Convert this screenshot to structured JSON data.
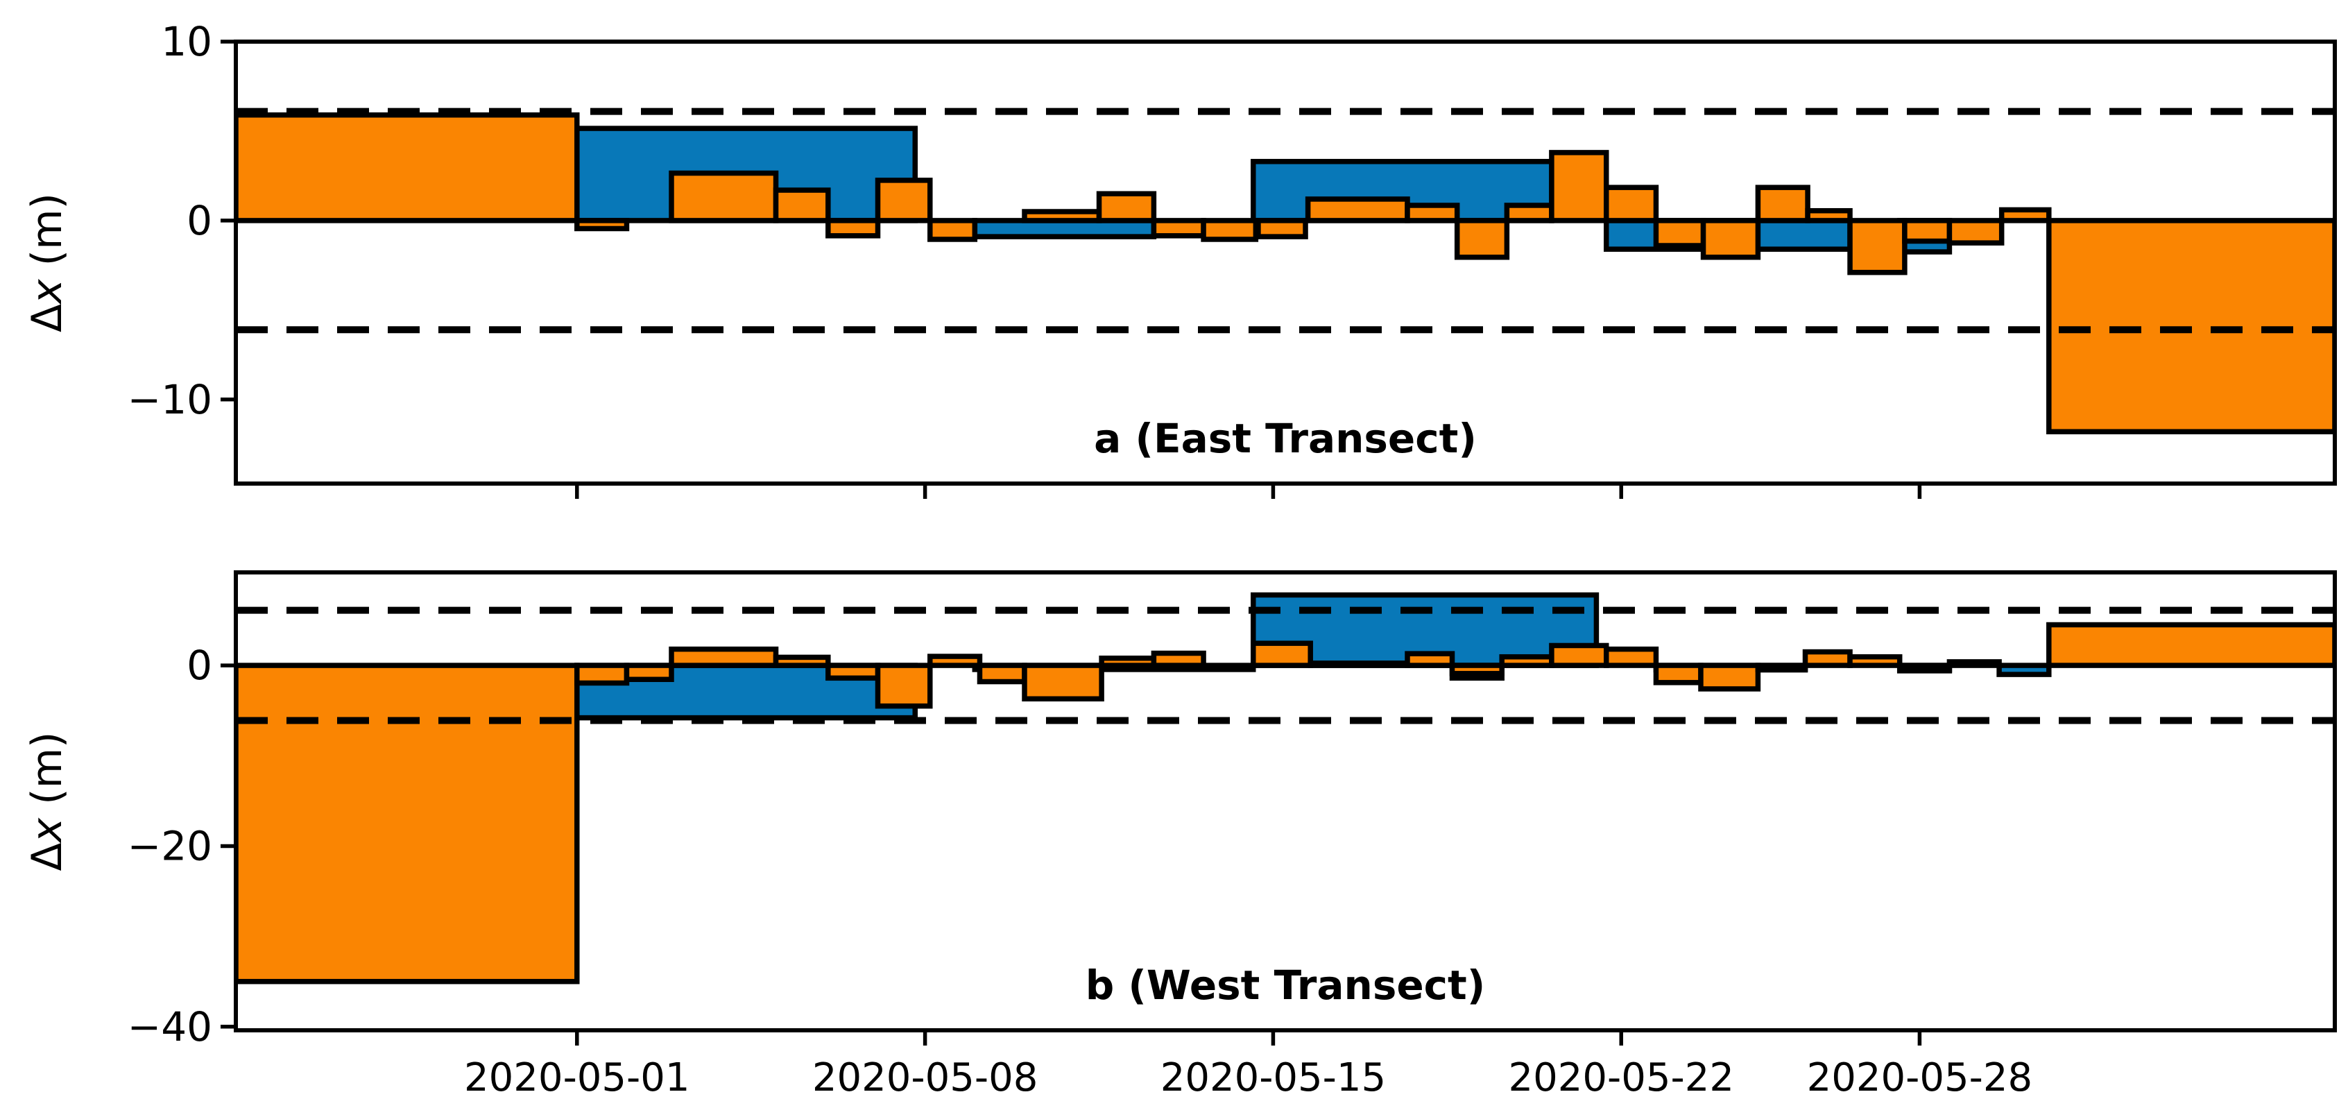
{
  "figure": {
    "background": "#ffffff"
  },
  "colors": {
    "orange": "#fa8502",
    "blue": "#0878b8",
    "edge": "#000000",
    "axis": "#000000"
  },
  "x_axis": {
    "unit": "date",
    "tick_days": [
      0,
      7,
      14,
      21,
      27
    ],
    "tick_labels": [
      "2020-05-01",
      "2020-05-08",
      "2020-05-15",
      "2020-05-22",
      "2020-05-28"
    ],
    "xlim_days": [
      -6.86,
      35.35
    ]
  },
  "chart_data": [
    {
      "type": "bar",
      "panel": "a",
      "title": "a (East Transect)",
      "ylabel": {
        "prefix": "Δ",
        "var": "x",
        "suffix": " (m)"
      },
      "ylim": [
        -14.7,
        10.0
      ],
      "yticks": [
        {
          "v": 10,
          "label": "10"
        },
        {
          "v": 0,
          "label": "0"
        },
        {
          "v": -10,
          "label": "−10"
        }
      ],
      "dashed_lines": [
        6.1,
        -6.1
      ],
      "grid": false,
      "legend": "none",
      "series": [
        {
          "name": "blue",
          "bars": [
            {
              "start": 0.0,
              "end": 6.8,
              "value": 5.15
            },
            {
              "start": 8.0,
              "end": 11.6,
              "value": -0.9
            },
            {
              "start": 13.6,
              "end": 19.6,
              "value": 3.3
            },
            {
              "start": 20.7,
              "end": 25.6,
              "value": -1.6
            },
            {
              "start": 26.6,
              "end": 27.6,
              "value": -1.75
            }
          ]
        },
        {
          "name": "orange",
          "bars": [
            {
              "start": -6.86,
              "end": 0.0,
              "value": 5.9
            },
            {
              "start": 0.0,
              "end": 1.0,
              "value": -0.45
            },
            {
              "start": 1.9,
              "end": 4.0,
              "value": 2.65
            },
            {
              "start": 4.0,
              "end": 5.05,
              "value": 1.7
            },
            {
              "start": 5.05,
              "end": 6.05,
              "value": -0.85
            },
            {
              "start": 6.05,
              "end": 7.1,
              "value": 2.25
            },
            {
              "start": 7.1,
              "end": 8.0,
              "value": -1.05
            },
            {
              "start": 9.0,
              "end": 10.5,
              "value": 0.5
            },
            {
              "start": 10.5,
              "end": 11.6,
              "value": 1.5
            },
            {
              "start": 11.6,
              "end": 12.6,
              "value": -0.85
            },
            {
              "start": 12.6,
              "end": 13.65,
              "value": -1.05
            },
            {
              "start": 13.7,
              "end": 14.65,
              "value": -0.9
            },
            {
              "start": 14.7,
              "end": 16.7,
              "value": 1.2
            },
            {
              "start": 16.7,
              "end": 17.7,
              "value": 0.85
            },
            {
              "start": 17.7,
              "end": 18.7,
              "value": -2.05
            },
            {
              "start": 18.7,
              "end": 19.6,
              "value": 0.85
            },
            {
              "start": 19.6,
              "end": 20.7,
              "value": 3.8
            },
            {
              "start": 20.7,
              "end": 21.7,
              "value": 1.85
            },
            {
              "start": 21.7,
              "end": 22.65,
              "value": -1.4
            },
            {
              "start": 22.65,
              "end": 23.75,
              "value": -2.05
            },
            {
              "start": 23.75,
              "end": 24.75,
              "value": 1.85
            },
            {
              "start": 24.75,
              "end": 25.6,
              "value": 0.55
            },
            {
              "start": 25.6,
              "end": 26.7,
              "value": -2.9
            },
            {
              "start": 26.7,
              "end": 27.6,
              "value": -1.15
            },
            {
              "start": 27.6,
              "end": 28.65,
              "value": -1.25
            },
            {
              "start": 28.65,
              "end": 29.6,
              "value": 0.6
            },
            {
              "start": 29.6,
              "end": 35.35,
              "value": -11.8
            }
          ]
        }
      ]
    },
    {
      "type": "bar",
      "panel": "b",
      "title": "b (West Transect)",
      "ylabel": {
        "prefix": "Δ",
        "var": "x",
        "suffix": " (m)"
      },
      "ylim": [
        -40.4,
        10.3
      ],
      "yticks": [
        {
          "v": 0,
          "label": "0"
        },
        {
          "v": -20,
          "label": "−20"
        },
        {
          "v": -40,
          "label": "−40"
        }
      ],
      "dashed_lines": [
        6.1,
        -6.1
      ],
      "grid": false,
      "legend": "none",
      "series": [
        {
          "name": "blue",
          "bars": [
            {
              "start": 0.0,
              "end": 6.8,
              "value": -5.8
            },
            {
              "start": 8.0,
              "end": 13.6,
              "value": -0.45
            },
            {
              "start": 13.6,
              "end": 20.5,
              "value": 7.8
            },
            {
              "start": 17.6,
              "end": 18.6,
              "value": -1.4
            },
            {
              "start": 21.7,
              "end": 24.7,
              "value": -0.5
            },
            {
              "start": 26.6,
              "end": 27.6,
              "value": -0.6
            },
            {
              "start": 28.6,
              "end": 29.6,
              "value": -1.0
            }
          ]
        },
        {
          "name": "orange",
          "bars": [
            {
              "start": -6.86,
              "end": 0.0,
              "value": -35.0
            },
            {
              "start": 0.0,
              "end": 1.0,
              "value": -1.95
            },
            {
              "start": 1.0,
              "end": 1.9,
              "value": -1.55
            },
            {
              "start": 1.9,
              "end": 4.0,
              "value": 1.8
            },
            {
              "start": 4.0,
              "end": 5.05,
              "value": 0.9
            },
            {
              "start": 5.05,
              "end": 6.05,
              "value": -1.4
            },
            {
              "start": 6.05,
              "end": 7.1,
              "value": -4.5
            },
            {
              "start": 7.1,
              "end": 8.1,
              "value": 1.0
            },
            {
              "start": 8.1,
              "end": 9.0,
              "value": -1.8
            },
            {
              "start": 9.0,
              "end": 10.55,
              "value": -3.7
            },
            {
              "start": 10.55,
              "end": 11.6,
              "value": 0.8
            },
            {
              "start": 11.6,
              "end": 12.6,
              "value": 1.35
            },
            {
              "start": 13.6,
              "end": 14.75,
              "value": 2.45
            },
            {
              "start": 14.75,
              "end": 16.7,
              "value": 0.25
            },
            {
              "start": 16.7,
              "end": 17.6,
              "value": 1.3
            },
            {
              "start": 17.6,
              "end": 18.6,
              "value": -0.9
            },
            {
              "start": 18.6,
              "end": 19.6,
              "value": 0.95
            },
            {
              "start": 19.6,
              "end": 20.7,
              "value": 2.2
            },
            {
              "start": 20.7,
              "end": 21.7,
              "value": 1.8
            },
            {
              "start": 21.7,
              "end": 22.6,
              "value": -1.9
            },
            {
              "start": 22.6,
              "end": 23.75,
              "value": -2.6
            },
            {
              "start": 23.75,
              "end": 24.7,
              "value": -0.45
            },
            {
              "start": 24.7,
              "end": 25.6,
              "value": 1.5
            },
            {
              "start": 25.6,
              "end": 26.6,
              "value": 0.95
            },
            {
              "start": 26.6,
              "end": 27.6,
              "value": -0.5
            },
            {
              "start": 27.6,
              "end": 28.6,
              "value": 0.4
            },
            {
              "start": 29.6,
              "end": 35.35,
              "value": 4.5
            }
          ]
        }
      ]
    }
  ]
}
